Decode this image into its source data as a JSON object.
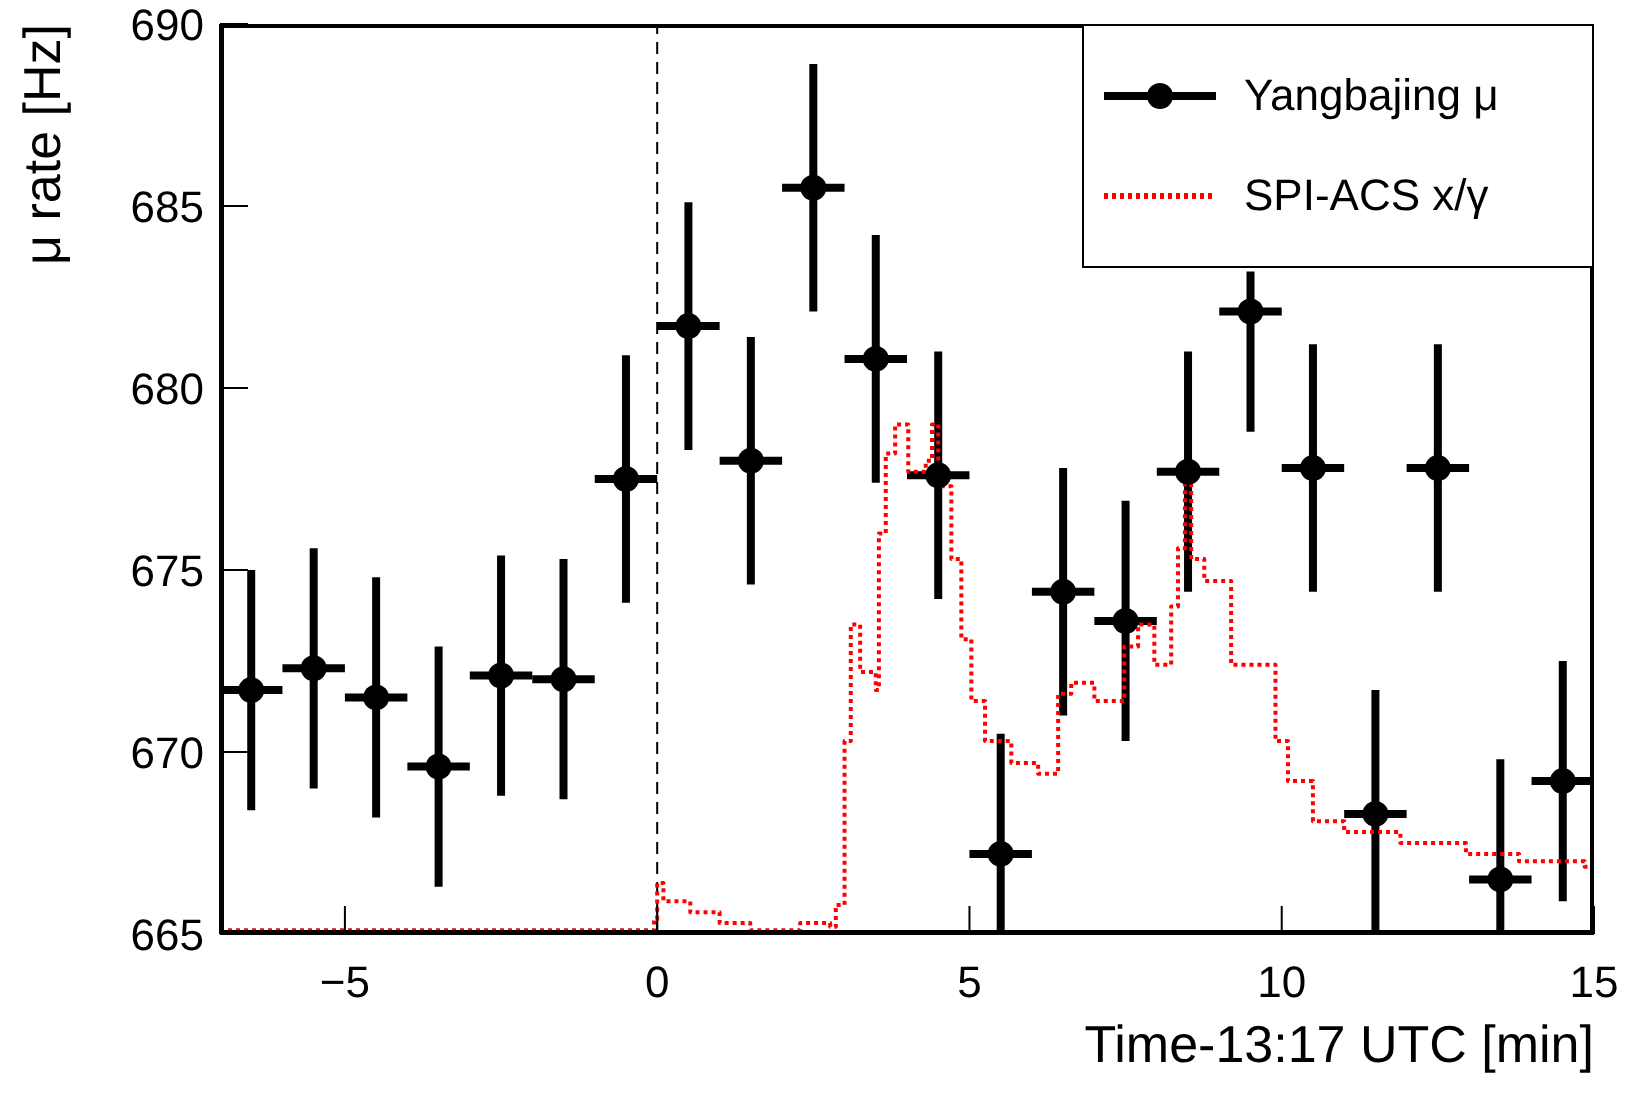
{
  "chart_data": {
    "type": "scatter",
    "xlabel": "Time-13:17 UTC [min]",
    "ylabel": "μ rate [Hz]",
    "xlim": [
      -7,
      15
    ],
    "xticks": [
      {
        "value": -5,
        "label": "−5"
      },
      0,
      5,
      10,
      15
    ],
    "ylim": [
      665,
      690
    ],
    "yticks": [
      665,
      670,
      675,
      680,
      685,
      690
    ],
    "grid": false,
    "legend": "top right",
    "series": [
      {
        "name": "Yangbajing μ",
        "color": "#000000",
        "marker": "circle",
        "x": [
          -6.5,
          -5.5,
          -4.5,
          -3.5,
          -2.5,
          -1.5,
          -0.5,
          0.5,
          1.5,
          2.5,
          3.5,
          4.5,
          5.5,
          6.5,
          7.5,
          8.5,
          9.5,
          10.5,
          11.5,
          12.5,
          13.5,
          14.5
        ],
        "values": [
          671.7,
          672.3,
          671.5,
          669.6,
          672.1,
          672.0,
          677.5,
          681.7,
          678.0,
          685.5,
          680.8,
          677.6,
          667.2,
          674.4,
          673.6,
          677.7,
          682.1,
          677.8,
          668.3,
          677.8,
          666.5,
          669.2
        ],
        "errors": [
          3.3,
          3.3,
          3.3,
          3.3,
          3.3,
          3.3,
          3.4,
          3.4,
          3.4,
          3.4,
          3.4,
          3.4,
          [
            665,
            670.5
          ],
          3.4,
          3.3,
          3.3,
          [
            678.8,
            683.2
          ],
          3.4,
          [
            665,
            671.7
          ],
          3.4,
          [
            665,
            669.8
          ],
          3.3
        ],
        "xerrors": [
          0.5,
          0.5,
          0.5,
          0.5,
          0.5,
          0.5,
          0.5,
          0.5,
          0.5,
          0.5,
          0.5,
          0.5,
          0.5,
          0.5,
          0.5,
          0.5,
          0.5,
          0.5,
          0.5,
          0.5,
          0.5,
          0.5
        ]
      },
      {
        "name": "SPI-ACS x/γ",
        "type": "step",
        "color": "#ff0000",
        "line_style": "dotted",
        "marker": "none",
        "x": [
          -7,
          -0.9,
          -0.05,
          0,
          0.1,
          0.53,
          1.0,
          1.49,
          2.29,
          2.77,
          2.86,
          3.0,
          3.1,
          3.25,
          3.5,
          3.55,
          3.66,
          3.81,
          4.02,
          4.3,
          4.4,
          4.5,
          4.71,
          4.87,
          5.03,
          5.25,
          5.67,
          6.1,
          6.42,
          6.63,
          7.0,
          7.48,
          7.7,
          7.96,
          8.23,
          8.34,
          8.45,
          8.55,
          8.76,
          9.19,
          9.7,
          9.9,
          10.1,
          10.5,
          11.0,
          11.9,
          12.95,
          13.8,
          14.85,
          15
        ],
        "values": [
          665.1,
          665.1,
          665.4,
          666.4,
          665.9,
          665.6,
          665.3,
          665.1,
          665.3,
          665.2,
          665.8,
          670.3,
          673.5,
          672.2,
          671.7,
          676.0,
          678.2,
          679.0,
          677.7,
          678.0,
          679.0,
          677.3,
          675.3,
          673.1,
          671.4,
          670.3,
          669.7,
          669.4,
          671.6,
          671.9,
          671.4,
          672.9,
          673.5,
          672.4,
          674.0,
          675.6,
          677.7,
          675.3,
          674.7,
          672.4,
          672.4,
          670.3,
          669.2,
          668.1,
          667.8,
          667.5,
          667.2,
          667.0,
          666.85,
          666.8
        ]
      }
    ],
    "ref_lines": [
      {
        "axis": "x",
        "value": 0,
        "color": "#000000",
        "line_style": "dashed"
      }
    ]
  }
}
